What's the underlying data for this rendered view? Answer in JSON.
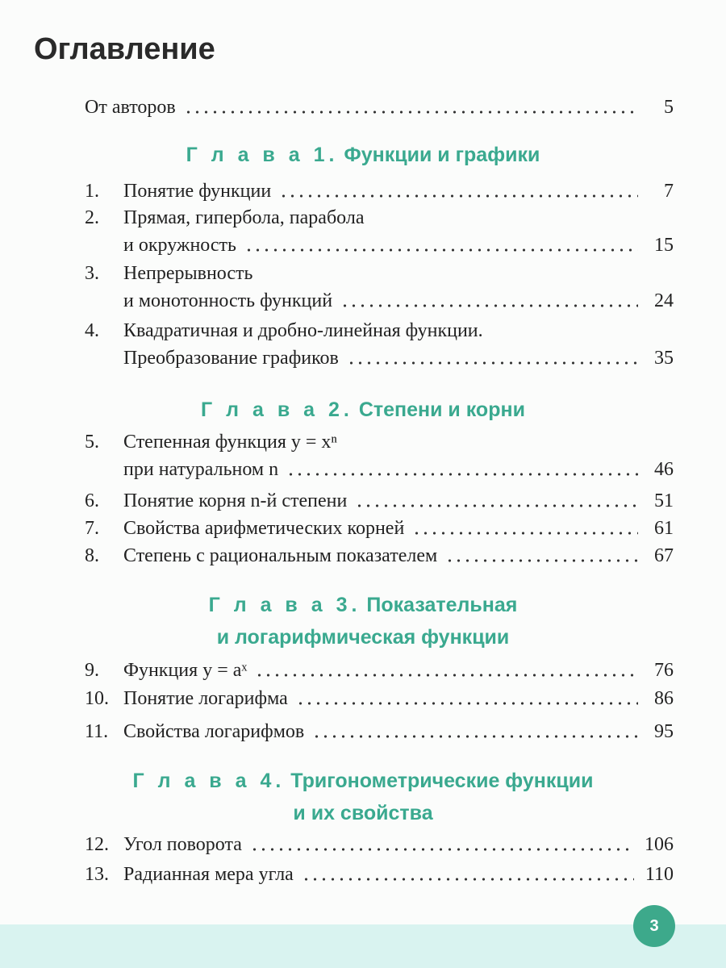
{
  "title": "Оглавление",
  "intro": {
    "text": "От авторов",
    "page": "5"
  },
  "chapters": [
    {
      "label": "Г л а в а 1.",
      "name": "Функции и графики",
      "name2": ""
    },
    {
      "label": "Г л а в а 2.",
      "name": "Степени и корни",
      "name2": ""
    },
    {
      "label": "Г л а в а 3.",
      "name": "Показательная",
      "name2": "и логарифмическая функции"
    },
    {
      "label": "Г л а в а 4.",
      "name": "Тригонометрические функции",
      "name2": "и их свойства"
    }
  ],
  "entries": [
    {
      "num": "1.",
      "line1": "Понятие функции",
      "line2": "",
      "page": "7"
    },
    {
      "num": "2.",
      "line1": "Прямая, гипербола, парабола",
      "line2": "и окружность",
      "page": "15"
    },
    {
      "num": "3.",
      "line1": "Непрерывность",
      "line2": "и монотонность функций",
      "page": "24"
    },
    {
      "num": "4.",
      "line1": "Квадратичная и дробно-линейная функции.",
      "line2": "Преобразование графиков",
      "page": "35"
    },
    {
      "num": "5.",
      "line1": "Степенная функция y = xⁿ",
      "line2": "при натуральном n",
      "page": "46"
    },
    {
      "num": "6.",
      "line1": "Понятие корня n-й степени",
      "line2": "",
      "page": "51"
    },
    {
      "num": "7.",
      "line1": "Свойства арифметических корней",
      "line2": "",
      "page": "61"
    },
    {
      "num": "8.",
      "line1": "Степень с рациональным показателем",
      "line2": "",
      "page": "67"
    },
    {
      "num": "9.",
      "line1": "Функция y = aˣ",
      "line2": "",
      "page": "76"
    },
    {
      "num": "10.",
      "line1": "Понятие логарифма",
      "line2": "",
      "page": "86"
    },
    {
      "num": "11.",
      "line1": "Свойства логарифмов",
      "line2": "",
      "page": "95"
    },
    {
      "num": "12.",
      "line1": "Угол поворота",
      "line2": "",
      "page": "106"
    },
    {
      "num": "13.",
      "line1": "Радианная мера угла",
      "line2": "",
      "page": "110"
    }
  ],
  "page_number": "3",
  "colors": {
    "accent": "#3aa98f",
    "band": "#d9f3f0"
  }
}
